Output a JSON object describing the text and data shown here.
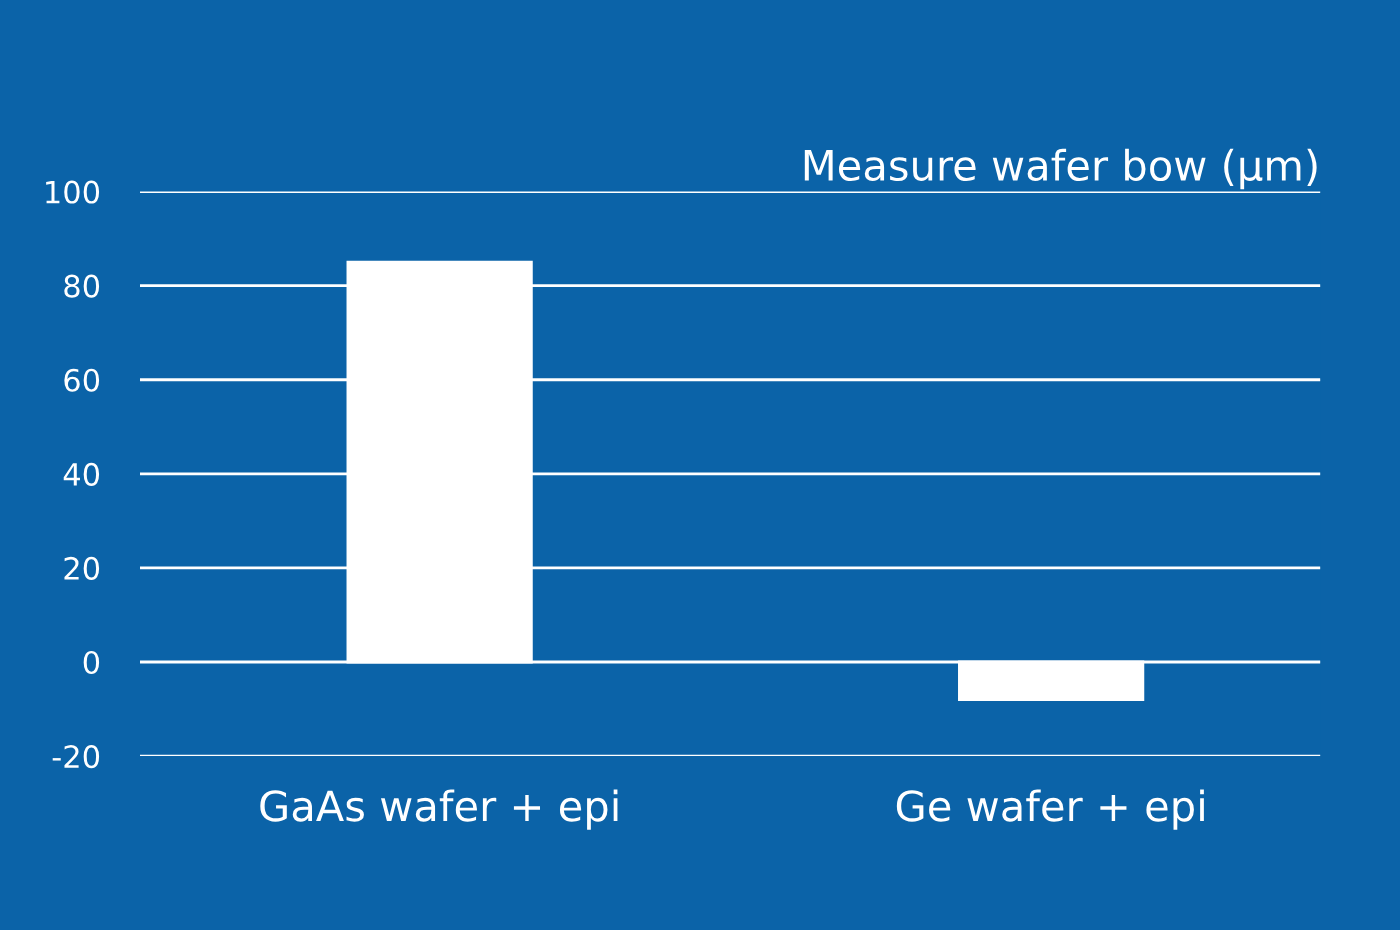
{
  "chart_data": {
    "type": "bar",
    "title": "Measure wafer bow (µm)",
    "categories": [
      "GaAs wafer + epi",
      "Ge wafer + epi"
    ],
    "values": [
      85,
      -8
    ],
    "color": "#ffffff",
    "ylim": [
      -20,
      100
    ],
    "yticks": [
      -20,
      0,
      20,
      40,
      60,
      80,
      100
    ],
    "grid": "y",
    "legend": false
  }
}
